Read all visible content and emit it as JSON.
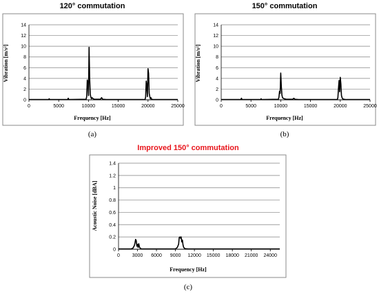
{
  "chart_data": [
    {
      "type": "line",
      "title": "120° commutation",
      "title_color": "#000000",
      "caption": "(a)",
      "xlabel": "Frequency [Hz]",
      "ylabel": "Vibration [m/s²]",
      "xlim": [
        0,
        25000
      ],
      "ylim": [
        0,
        14
      ],
      "xticks": [
        0,
        5000,
        10000,
        15000,
        20000,
        25000
      ],
      "yticks": [
        0,
        2,
        4,
        6,
        8,
        10,
        12,
        14
      ],
      "grid": "horizontal",
      "series": [
        {
          "color": "#000000",
          "x": [
            0,
            3300,
            3400,
            3500,
            6500,
            6600,
            6700,
            9600,
            9700,
            9800,
            9900,
            10000,
            10100,
            10200,
            10300,
            10400,
            10500,
            10600,
            10800,
            11000,
            12000,
            12200,
            12400,
            13000,
            19500,
            19600,
            19700,
            19800,
            19900,
            20000,
            20100,
            20200,
            20300,
            20400,
            20500,
            20600,
            21000,
            25000
          ],
          "y": [
            0.05,
            0.05,
            0.2,
            0.05,
            0.05,
            0.3,
            0.05,
            0.1,
            0.6,
            3.7,
            3.1,
            0.8,
            9.8,
            4.0,
            1.0,
            0.5,
            0.2,
            0.4,
            0.2,
            0.1,
            0.1,
            0.4,
            0.1,
            0.05,
            0.05,
            0.5,
            3.5,
            2.6,
            0.6,
            5.8,
            4.9,
            1.2,
            0.6,
            0.2,
            0.4,
            0.1,
            0.05,
            0.05
          ]
        }
      ]
    },
    {
      "type": "line",
      "title": "150° commutation",
      "title_color": "#000000",
      "caption": "(b)",
      "xlabel": "Frequency [Hz]",
      "ylabel": "Vibration [m/s²]",
      "xlim": [
        0,
        25000
      ],
      "ylim": [
        0,
        14
      ],
      "xticks": [
        0,
        5000,
        10000,
        15000,
        20000,
        25000
      ],
      "yticks": [
        0,
        2,
        4,
        6,
        8,
        10,
        12,
        14
      ],
      "grid": "horizontal",
      "series": [
        {
          "color": "#000000",
          "x": [
            0,
            3300,
            3400,
            3500,
            6600,
            6700,
            6800,
            9600,
            9700,
            9800,
            9900,
            10000,
            10100,
            10200,
            10300,
            10400,
            10600,
            11000,
            12000,
            12200,
            12400,
            13000,
            19500,
            19600,
            19700,
            19800,
            19900,
            20000,
            20100,
            20200,
            20300,
            20400,
            20600,
            21000,
            25000
          ],
          "y": [
            0.05,
            0.05,
            0.3,
            0.05,
            0.05,
            0.2,
            0.05,
            0.1,
            0.5,
            1.6,
            1.2,
            5.0,
            2.5,
            0.9,
            0.4,
            0.3,
            0.2,
            0.1,
            0.1,
            0.3,
            0.1,
            0.05,
            0.05,
            0.4,
            2.2,
            3.6,
            1.5,
            4.2,
            3.0,
            0.8,
            0.4,
            0.2,
            0.1,
            0.05,
            0.05
          ]
        }
      ]
    },
    {
      "type": "line",
      "title": "Improved 150° commutation",
      "title_color": "#e8141b",
      "caption": "(c)",
      "xlabel": "Frequency [Hz]",
      "ylabel": "Acoustic Noise [dBA]",
      "xlim": [
        0,
        25500
      ],
      "ylim": [
        0,
        1.4
      ],
      "xticks": [
        0,
        3000,
        6000,
        9000,
        12000,
        15000,
        18000,
        21000,
        24000
      ],
      "yticks": [
        0,
        0.2,
        0.4,
        0.6,
        0.8,
        1.0,
        1.2,
        1.4
      ],
      "ytick_labels": [
        "0",
        "0.2",
        "0.4",
        "0.6",
        "0.8",
        "1",
        "1.2",
        "1.4"
      ],
      "grid": "horizontal",
      "series": [
        {
          "color": "#000000",
          "x": [
            0,
            2000,
            2300,
            2500,
            2600,
            2700,
            2800,
            2900,
            3000,
            3100,
            3200,
            3300,
            3400,
            3600,
            9000,
            9300,
            9500,
            9600,
            9700,
            9800,
            9900,
            10000,
            10100,
            10200,
            10300,
            10500,
            11000,
            25500
          ],
          "y": [
            0.005,
            0.005,
            0.02,
            0.06,
            0.1,
            0.16,
            0.14,
            0.05,
            0.08,
            0.03,
            0.09,
            0.04,
            0.02,
            0.005,
            0.005,
            0.03,
            0.08,
            0.19,
            0.2,
            0.18,
            0.2,
            0.12,
            0.15,
            0.07,
            0.03,
            0.01,
            0.005,
            0.005
          ]
        }
      ]
    }
  ]
}
